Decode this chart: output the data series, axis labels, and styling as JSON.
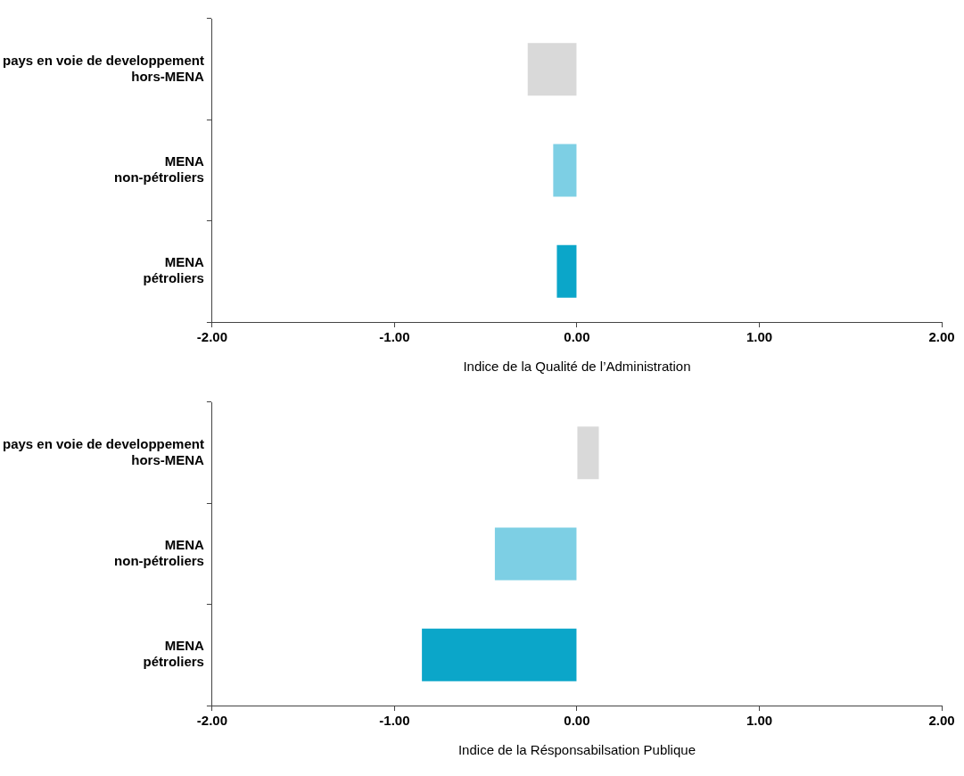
{
  "chart_data": [
    {
      "type": "bar",
      "orientation": "horizontal",
      "xlabel": "Indice de la Qualité de l’Administration",
      "categories": [
        "pays en voie de developpement\nhors-MENA",
        "MENA\nnon-pétroliers",
        "MENA\npétroliers"
      ],
      "values": [
        -0.27,
        -0.13,
        -0.11
      ],
      "colors": [
        "#d9d9d9",
        "#7dcfe4",
        "#0ba6c9"
      ],
      "xlim": [
        -2,
        2
      ],
      "xticks": [
        {
          "value": -2,
          "label": "-2.00"
        },
        {
          "value": -1,
          "label": "-1.00"
        },
        {
          "value": 0,
          "label": "0.00"
        },
        {
          "value": 1,
          "label": "1.00"
        },
        {
          "value": 2,
          "label": "2.00"
        }
      ],
      "grid": false,
      "legend": false
    },
    {
      "type": "bar",
      "orientation": "horizontal",
      "xlabel": "Indice de la Résponsabilsation Publique",
      "categories": [
        "pays en voie de developpement\nhors-MENA",
        "MENA\nnon-pétroliers",
        "MENA\npétroliers"
      ],
      "values": [
        0.12,
        -0.45,
        -0.85
      ],
      "colors": [
        "#d9d9d9",
        "#7dcfe4",
        "#0ba6c9"
      ],
      "xlim": [
        -2,
        2
      ],
      "xticks": [
        {
          "value": -2,
          "label": "-2.00"
        },
        {
          "value": -1,
          "label": "-1.00"
        },
        {
          "value": 0,
          "label": "0.00"
        },
        {
          "value": 1,
          "label": "1.00"
        },
        {
          "value": 2,
          "label": "2.00"
        }
      ],
      "grid": false,
      "legend": false
    }
  ]
}
